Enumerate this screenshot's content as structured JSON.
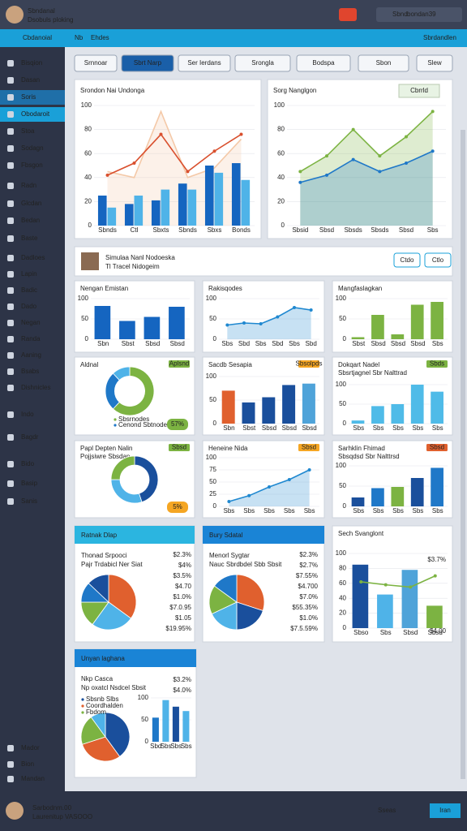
{
  "header": {
    "user": "Sbndanal",
    "subtitle": "Dsobuls ploking",
    "search": "Sbnd",
    "username": "bondan39"
  },
  "nav": {
    "brand": "Cbdanoial",
    "items": [
      "Nb",
      "Ehdes"
    ],
    "right": "Sbrdandlen"
  },
  "sidebar": {
    "items": [
      "Bisqion",
      "Dasan",
      "Soris",
      "Obodaroit",
      "Stoa",
      "Sodagn",
      "Fbsgon",
      "Radn",
      "Glcdan",
      "Bedan",
      "Baste",
      "Dadloes",
      "Lapin",
      "Badic",
      "Dado",
      "Negan",
      "Randa",
      "Aaning",
      "Bsabs",
      "Dishnicles",
      "Indo",
      "Bagdr",
      "Bido",
      "Basip",
      "Sanis"
    ],
    "bottom": [
      "Mador",
      "Bion",
      "Mandan"
    ]
  },
  "toolbar": [
    "Srnnoar",
    "Sbrt Narp",
    "Ser Ierdans",
    "Srongla",
    "Bodspa",
    "Sbon",
    "Slew"
  ],
  "profile": {
    "name": "Simulaa Nanl Nodoeska",
    "subtitle": "Tl Tracel Nidogeim",
    "buttons": [
      "Ctdo",
      "Ctlo"
    ]
  },
  "panels": [
    {
      "title": "Srondon Nai Undonga",
      "chart": {
        "type": "combo",
        "categories": [
          "Sbnds",
          "Ctl",
          "Sbxts",
          "Sbnds",
          "Sbxs",
          "Bonds"
        ],
        "ylim": [
          0,
          100
        ],
        "yticks": [
          0,
          20,
          40,
          60,
          80,
          100
        ],
        "series": [
          {
            "kind": "area",
            "color": "#f4c9a8",
            "values": [
              45,
              40,
              95,
              40,
              48,
              72
            ]
          },
          {
            "kind": "bar",
            "color": "#1565c0",
            "values": [
              25,
              18,
              21,
              35,
              50,
              52
            ]
          },
          {
            "kind": "bar",
            "color": "#4fb3e8",
            "values": [
              15,
              25,
              30,
              30,
              44,
              38
            ]
          },
          {
            "kind": "line",
            "color": "#d9502e",
            "markers": true,
            "values": [
              42,
              52,
              76,
              45,
              62,
              76
            ]
          }
        ]
      }
    },
    {
      "title": "Sorg Nanglgon",
      "button": "Cbrrld",
      "chart": {
        "type": "line",
        "categories": [
          "Sbsid",
          "Sbsd",
          "Sbsds",
          "Sbsds",
          "Sbsd",
          "Sbs"
        ],
        "ylim": [
          0,
          100
        ],
        "yticks": [
          0,
          20,
          40,
          60,
          80,
          100
        ],
        "series": [
          {
            "kind": "area",
            "color": "#7cb342",
            "markers": true,
            "values": [
              45,
              58,
              80,
              58,
              74,
              95
            ]
          },
          {
            "kind": "area",
            "color": "#1f78c8",
            "markers": true,
            "values": [
              36,
              42,
              55,
              45,
              52,
              62
            ]
          }
        ]
      }
    },
    {
      "title": "Nengan Emistan",
      "chart": {
        "type": "bar",
        "categories": [
          "Sbn",
          "Sbst",
          "Sbsd",
          "Sbsd"
        ],
        "ylim": [
          0,
          100
        ],
        "yticks": [
          0,
          50,
          100
        ],
        "series": [
          {
            "color": "#1565c0",
            "values": [
              82,
              45,
              55,
              80
            ]
          }
        ]
      }
    },
    {
      "title": "Rakisqodes",
      "chart": {
        "type": "line",
        "categories": [
          "Sbs",
          "Sbd",
          "Sbs",
          "Sbd",
          "Sbs",
          "Sbd"
        ],
        "ylim": [
          0,
          100
        ],
        "yticks": [
          0,
          50,
          100
        ],
        "series": [
          {
            "kind": "area",
            "color": "#1f88d0",
            "markers": true,
            "values": [
              35,
              40,
              38,
              55,
              78,
              72
            ]
          }
        ]
      }
    },
    {
      "title": "Mangfaslagkan",
      "chart": {
        "type": "bar",
        "categories": [
          "Sbst",
          "Sbsd",
          "Sbsd",
          "Sbsd",
          "Sbs"
        ],
        "ylim": [
          0,
          100
        ],
        "yticks": [
          0,
          50,
          100
        ],
        "series": [
          {
            "color": "#7cb342",
            "values": [
              5,
              60,
              12,
              85,
              92
            ]
          }
        ]
      }
    },
    {
      "title": "Aldnal",
      "badge": "Aplsnd",
      "badge_color": "#7cb342",
      "chart": {
        "type": "donut",
        "values": [
          62,
          26,
          12
        ],
        "colors": [
          "#7cb342",
          "#1f78c8",
          "#4fb3e8"
        ]
      },
      "legend": [
        "Sbsrnodes",
        "Cenond Sbtnodes"
      ],
      "note": "57%",
      "note_color": "#7cb342"
    },
    {
      "title": "Sacdb Sesapia",
      "badge": "Sbsolpds",
      "badge_color": "#f5a623",
      "chart": {
        "type": "bar",
        "categories": [
          "Sbn",
          "Sbst",
          "Sbsd",
          "Sbsd",
          "Sbsd"
        ],
        "ylim": [
          0,
          100
        ],
        "yticks": [
          0,
          50,
          100
        ],
        "series": [
          {
            "colors": [
              "#e0602e",
              "#1a4f9c",
              "#1a4f9c",
              "#1a4f9c",
              "#4fa3d9"
            ],
            "values": [
              70,
              45,
              56,
              82,
              85
            ]
          }
        ]
      }
    },
    {
      "title": "Dokqart Nadel",
      "subtitle": "Sbsrtjagnel Sbr Nalttrad",
      "badge": "Sbds",
      "badge_color": "#7cb342",
      "chart": {
        "type": "bar",
        "categories": [
          "Sbs",
          "Sbs",
          "Sbs",
          "Sbs",
          "Sbs"
        ],
        "ylim": [
          0,
          100
        ],
        "yticks": [
          0,
          50,
          100
        ],
        "series": [
          {
            "color": "#4fbbe8",
            "values": [
              8,
              45,
              50,
              100,
              82
            ]
          }
        ]
      }
    },
    {
      "title": "Papl Depten Nalin",
      "subtitle": "Pojjsiwre Sbsdan",
      "badge": "Sbsd",
      "badge_color": "#7cb342",
      "chart": {
        "type": "donut",
        "values": [
          45,
          30,
          25
        ],
        "colors": [
          "#1a4f9c",
          "#4fb3e8",
          "#7cb342"
        ]
      },
      "note": "5%",
      "note_color": "#f5a623"
    },
    {
      "title": "Heneine Nida",
      "badge": "Sbsd",
      "badge_color": "#f5a623",
      "chart": {
        "type": "line",
        "categories": [
          "Sbs",
          "Sbs",
          "Sbs",
          "Sbs",
          "Sbs"
        ],
        "ylim": [
          0,
          100
        ],
        "yticks": [
          0,
          25,
          50,
          75,
          100
        ],
        "series": [
          {
            "kind": "area",
            "color": "#1f88d0",
            "markers": true,
            "values": [
              10,
              22,
              40,
              55,
              75
            ]
          }
        ]
      }
    },
    {
      "title": "Sarhklin Fhimad",
      "subtitle": "Sbsqdsd Sbr Nalttrsd",
      "badge": "Sbsd",
      "badge_color": "#e0602e",
      "chart": {
        "type": "bar",
        "categories": [
          "Sbs",
          "Sbs",
          "Sbs",
          "Sbs",
          "Sbs"
        ],
        "ylim": [
          0,
          100
        ],
        "yticks": [
          0,
          50,
          100
        ],
        "series": [
          {
            "colors": [
              "#1a4f9c",
              "#1f78c8",
              "#7cb342",
              "#1a4f9c",
              "#1f78c8"
            ],
            "values": [
              22,
              45,
              48,
              70,
              95
            ]
          }
        ]
      }
    },
    {
      "title": "Ratnak Dlap",
      "header_color": "#2bb5e0",
      "heading": "Thonad Srpooci",
      "subtitle": "Pajr Trdabicl Ner Siat",
      "chart": {
        "type": "pie",
        "values": [
          35,
          25,
          15,
          12,
          13
        ],
        "colors": [
          "#e0602e",
          "#4fb3e8",
          "#7cb342",
          "#1f78c8",
          "#1a4f9c"
        ]
      },
      "notes": [
        "$2.3%",
        "$4%",
        "$3.5%",
        "$4.70",
        "$1.0%",
        "$7.0.95",
        "$1.05",
        "$19.95%"
      ]
    },
    {
      "title": "Bury Sdatal",
      "header_color": "#1a84d6",
      "heading": "Menorl Sygtar",
      "subtitle": "Nauc Sbrdbdel Sbb Sbsit",
      "chart": {
        "type": "pie",
        "values": [
          30,
          20,
          18,
          17,
          15
        ],
        "colors": [
          "#e0602e",
          "#1a4f9c",
          "#4fb3e8",
          "#7cb342",
          "#1f78c8"
        ]
      },
      "notes": [
        "$2.3%",
        "$2.7%",
        "$7.55%",
        "$4.700",
        "$7.0%",
        "$55.35%",
        "$1.0%",
        "$7.5.59%"
      ]
    },
    {
      "title": "Sech Svanglont",
      "chart": {
        "type": "combo",
        "categories": [
          "Sbso",
          "Sbs",
          "Sbsd",
          "Sbsd"
        ],
        "ylim": [
          0,
          100
        ],
        "yticks": [
          0,
          20,
          40,
          60,
          80,
          100
        ],
        "series": [
          {
            "kind": "bar",
            "colors": [
              "#1a4f9c",
              "#4fb3e8",
              "#4fa3d9",
              "#7cb342"
            ],
            "values": [
              85,
              45,
              78,
              30
            ]
          },
          {
            "kind": "line",
            "color": "#7cb342",
            "markers": true,
            "values": [
              62,
              58,
              55,
              70
            ]
          }
        ]
      },
      "notes": [
        "$3.7%",
        "$4.00"
      ]
    },
    {
      "title": "Unyan laghana",
      "header_color": "#1a84d6",
      "heading": "Nkp Casca",
      "subtitle": "Np oxatcl Nsdcel Sbsit",
      "chart": {
        "type": "pie",
        "values": [
          40,
          30,
          20,
          10
        ],
        "colors": [
          "#1a4f9c",
          "#e0602e",
          "#7cb342",
          "#4fb3e8"
        ]
      },
      "legend": [
        "Sbsnb Slbs",
        "Coordhalden",
        "Fbdom"
      ],
      "chart2": {
        "type": "bar",
        "categories": [
          "Sbd",
          "Sbs",
          "Sbs",
          "Sbs"
        ],
        "ylim": [
          0,
          100
        ],
        "yticks": [
          0,
          50,
          100
        ],
        "series": [
          {
            "colors": [
              "#1f78c8",
              "#4fb3e8",
              "#1a4f9c",
              "#4fb3e8"
            ],
            "values": [
              55,
              95,
              80,
              70
            ]
          }
        ]
      },
      "notes": [
        "$3.2%",
        "$4.0%"
      ]
    }
  ],
  "footer": {
    "name": "Sarbodnm.00",
    "subtitle": "Laurenitup VASOOO",
    "search": "Sseas",
    "button": "Iran"
  }
}
